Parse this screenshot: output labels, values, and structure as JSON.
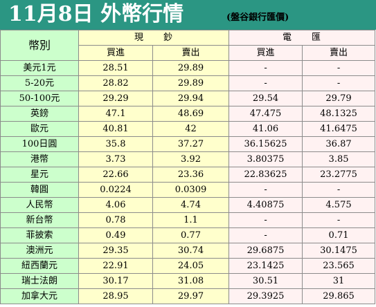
{
  "header": {
    "title": "11月8日 外幣行情",
    "subtitle": "(盤谷銀行匯價)"
  },
  "table": {
    "corner_label": "幣別",
    "group_cash": "現　　鈔",
    "group_wire": "電　　匯",
    "col_cash_buy": "買進",
    "col_cash_sell": "賣出",
    "col_wire_buy": "買進",
    "col_wire_sell": "賣出",
    "rows": [
      {
        "currency": "美元1元",
        "cash_buy": "28.51",
        "cash_sell": "29.89",
        "wire_buy": "-",
        "wire_sell": "-"
      },
      {
        "currency": "5-20元",
        "cash_buy": "28.82",
        "cash_sell": "29.89",
        "wire_buy": "-",
        "wire_sell": "-"
      },
      {
        "currency": "50-100元",
        "cash_buy": "29.29",
        "cash_sell": "29.94",
        "wire_buy": "29.54",
        "wire_sell": "29.79"
      },
      {
        "currency": "英鎊",
        "cash_buy": "47.1",
        "cash_sell": "48.69",
        "wire_buy": "47.475",
        "wire_sell": "48.1325"
      },
      {
        "currency": "歐元",
        "cash_buy": "40.81",
        "cash_sell": "42",
        "wire_buy": "41.06",
        "wire_sell": "41.6475"
      },
      {
        "currency": "100日圓",
        "cash_buy": "35.8",
        "cash_sell": "37.27",
        "wire_buy": "36.15625",
        "wire_sell": "36.87"
      },
      {
        "currency": "港幣",
        "cash_buy": "3.73",
        "cash_sell": "3.92",
        "wire_buy": "3.80375",
        "wire_sell": "3.85"
      },
      {
        "currency": "星元",
        "cash_buy": "22.66",
        "cash_sell": "23.36",
        "wire_buy": "22.83625",
        "wire_sell": "23.2775"
      },
      {
        "currency": "韓圓",
        "cash_buy": "0.0224",
        "cash_sell": "0.0309",
        "wire_buy": "-",
        "wire_sell": "-"
      },
      {
        "currency": "人民幣",
        "cash_buy": "4.06",
        "cash_sell": "4.74",
        "wire_buy": "4.40875",
        "wire_sell": "4.575"
      },
      {
        "currency": "新台幣",
        "cash_buy": "0.78",
        "cash_sell": "1.1",
        "wire_buy": "-",
        "wire_sell": "-"
      },
      {
        "currency": "菲披索",
        "cash_buy": "0.49",
        "cash_sell": "0.77",
        "wire_buy": "-",
        "wire_sell": "0.71"
      },
      {
        "currency": "澳洲元",
        "cash_buy": "29.35",
        "cash_sell": "30.74",
        "wire_buy": "29.6875",
        "wire_sell": "30.1475"
      },
      {
        "currency": "紐西蘭元",
        "cash_buy": "22.91",
        "cash_sell": "24.05",
        "wire_buy": "23.1425",
        "wire_sell": "23.565"
      },
      {
        "currency": "瑞士法朗",
        "cash_buy": "30.17",
        "cash_sell": "31.08",
        "wire_buy": "30.51",
        "wire_sell": "31"
      },
      {
        "currency": "加拿大元",
        "cash_buy": "28.95",
        "cash_sell": "29.97",
        "wire_buy": "29.3925",
        "wire_sell": "29.865"
      }
    ]
  }
}
